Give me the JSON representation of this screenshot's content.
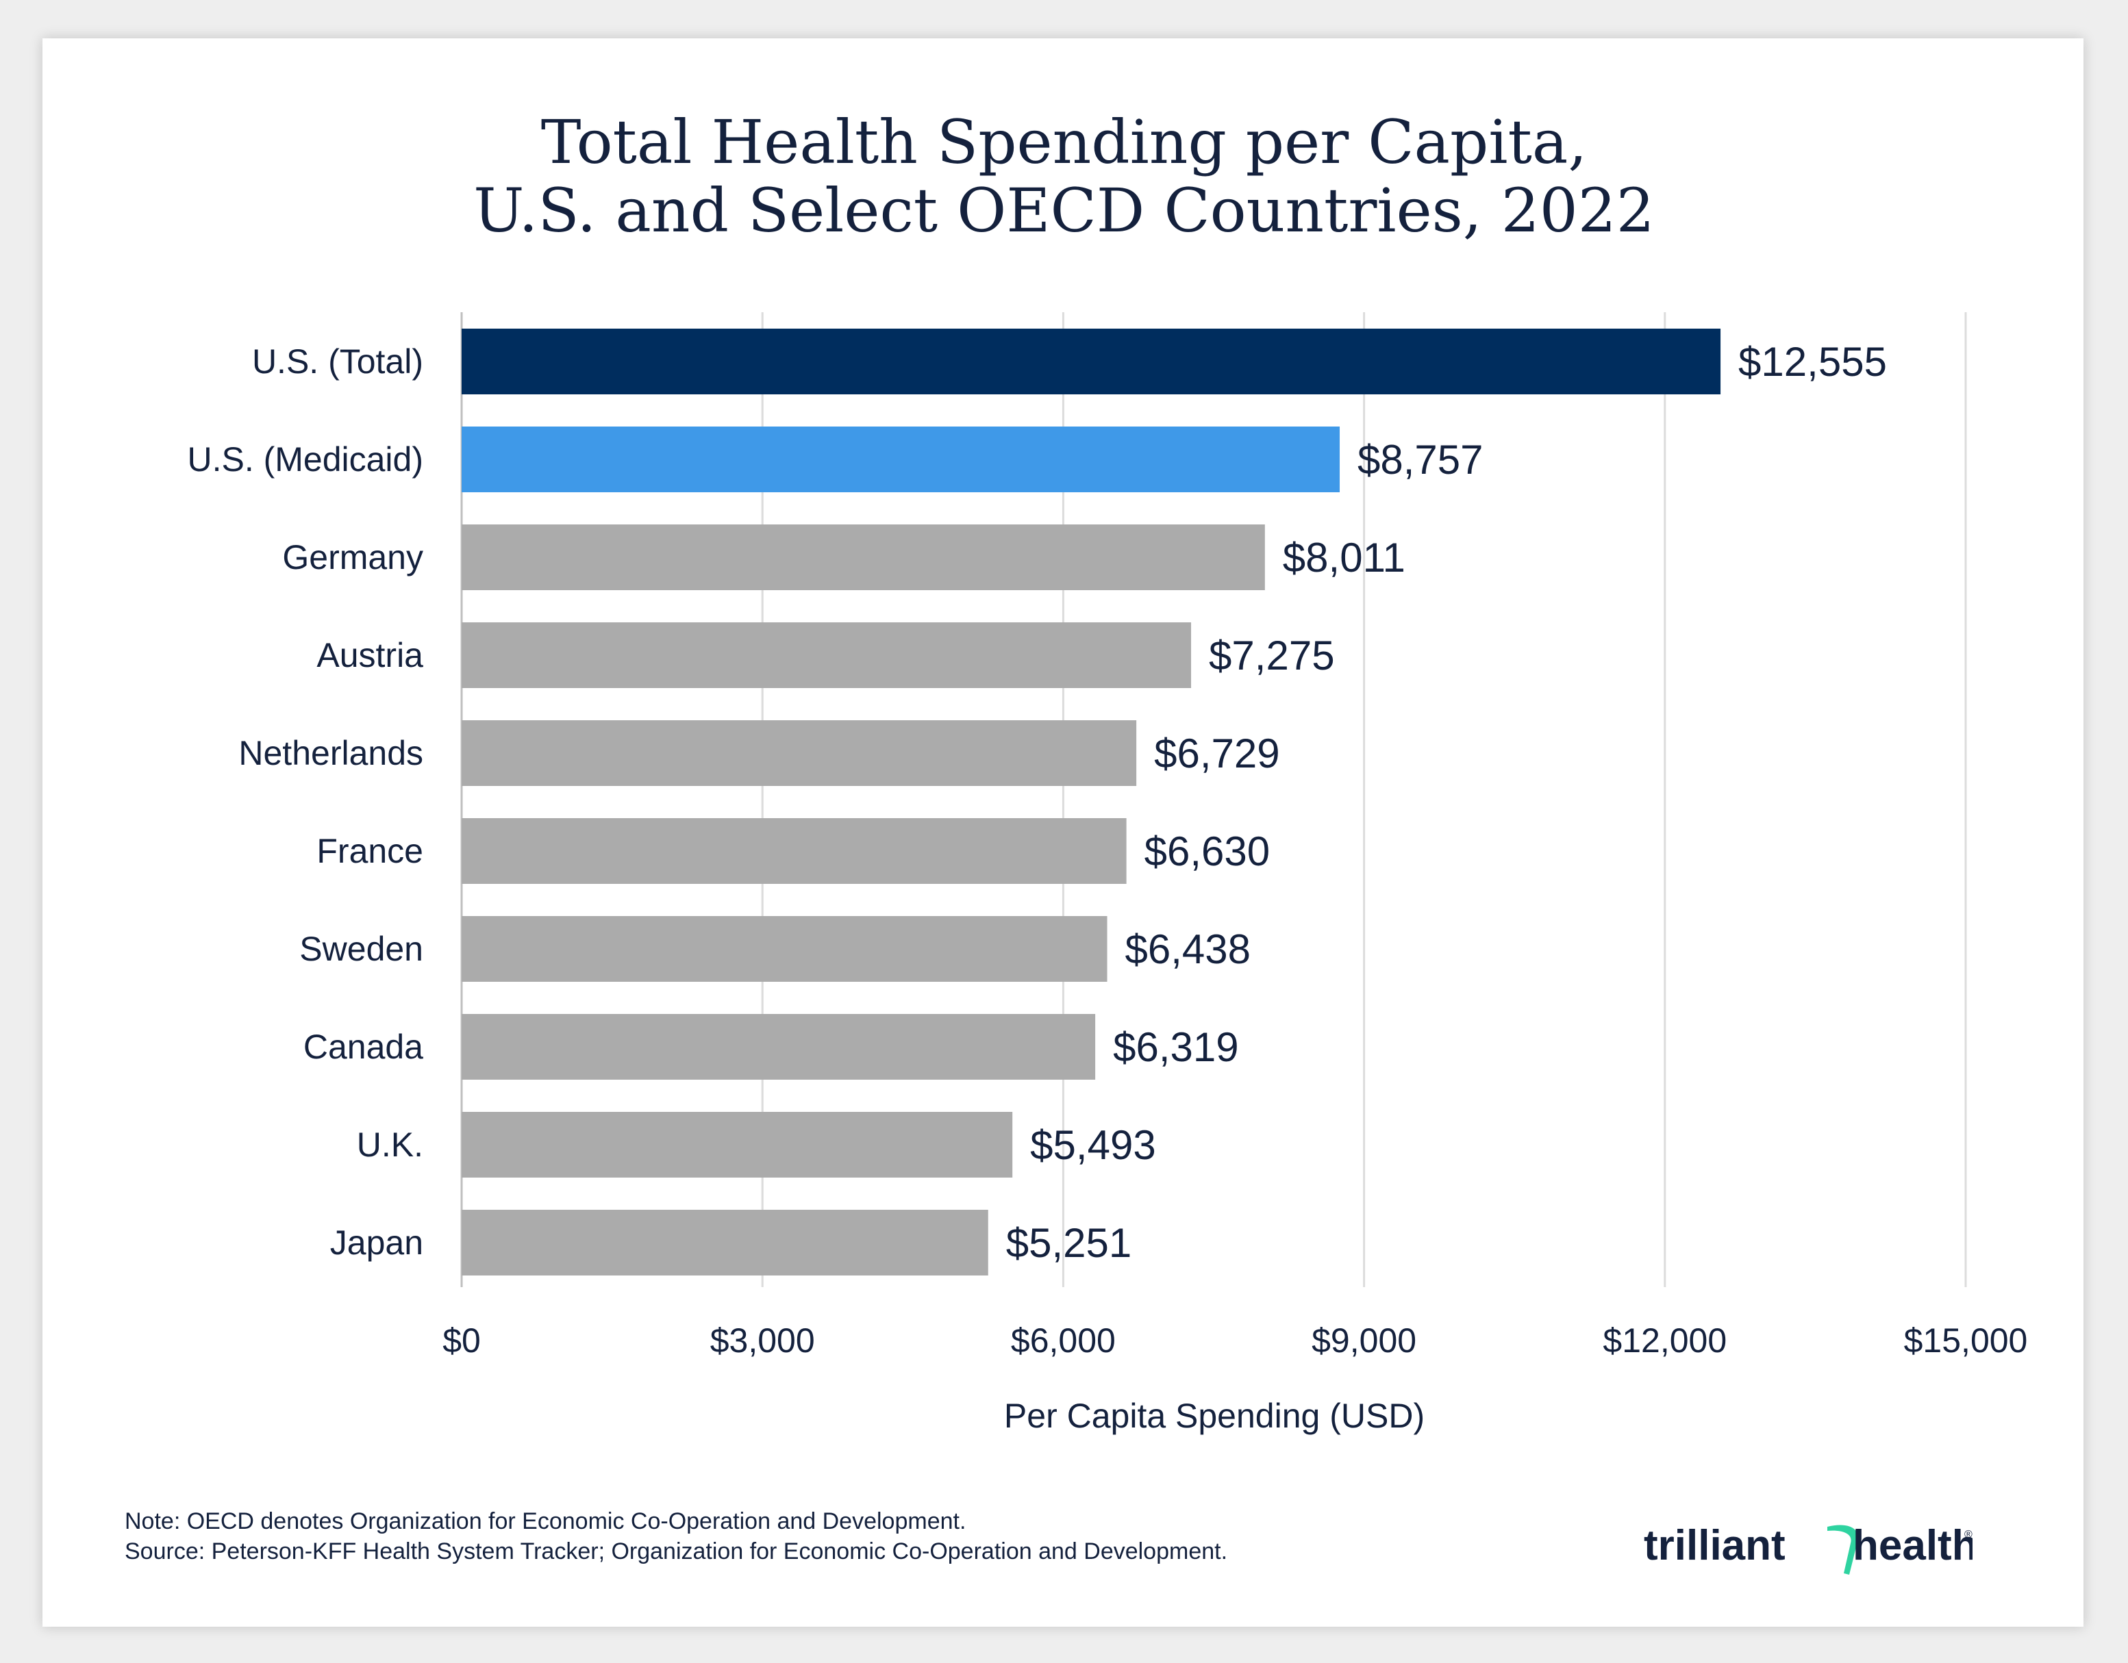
{
  "chart_data": {
    "type": "bar",
    "orientation": "horizontal",
    "title_line1": "Total Health Spending per Capita,",
    "title_line2": "U.S. and Select OECD Countries, 2022",
    "categories": [
      "U.S. (Total)",
      "U.S. (Medicaid)",
      "Germany",
      "Austria",
      "Netherlands",
      "France",
      "Sweden",
      "Canada",
      "U.K.",
      "Japan"
    ],
    "values": [
      12555,
      8757,
      8011,
      7275,
      6729,
      6630,
      6438,
      6319,
      5493,
      5251
    ],
    "value_labels": [
      "$12,555",
      "$8,757",
      "$8,011",
      "$7,275",
      "$6,729",
      "$6,630",
      "$6,438",
      "$6,319",
      "$5,493",
      "$5,251"
    ],
    "bar_colors": [
      "#002d5e",
      "#3f99e8",
      "#ababab",
      "#ababab",
      "#ababab",
      "#ababab",
      "#ababab",
      "#ababab",
      "#ababab",
      "#ababab"
    ],
    "xlim": [
      0,
      15000
    ],
    "xticks": [
      0,
      3000,
      6000,
      9000,
      12000,
      15000
    ],
    "xtick_labels": [
      "$0",
      "$3,000",
      "$6,000",
      "$9,000",
      "$12,000",
      "$15,000"
    ],
    "xlabel": "Per Capita Spending (USD)",
    "ylabel": "",
    "grid": true
  },
  "notes": {
    "note": "Note: OECD denotes Organization for Economic Co-Operation and Development.",
    "source": "Source: Peterson-KFF Health System Tracker; Organization for Economic Co-Operation and Development."
  },
  "logo": {
    "text_left": "trilliant",
    "text_right": "health",
    "registered": "®",
    "brand_color": "#14213d",
    "accent_color": "#2ed3a0"
  },
  "colors": {
    "text": "#14213d",
    "grid": "#dcdcdc",
    "axis": "#bfbfbf"
  }
}
